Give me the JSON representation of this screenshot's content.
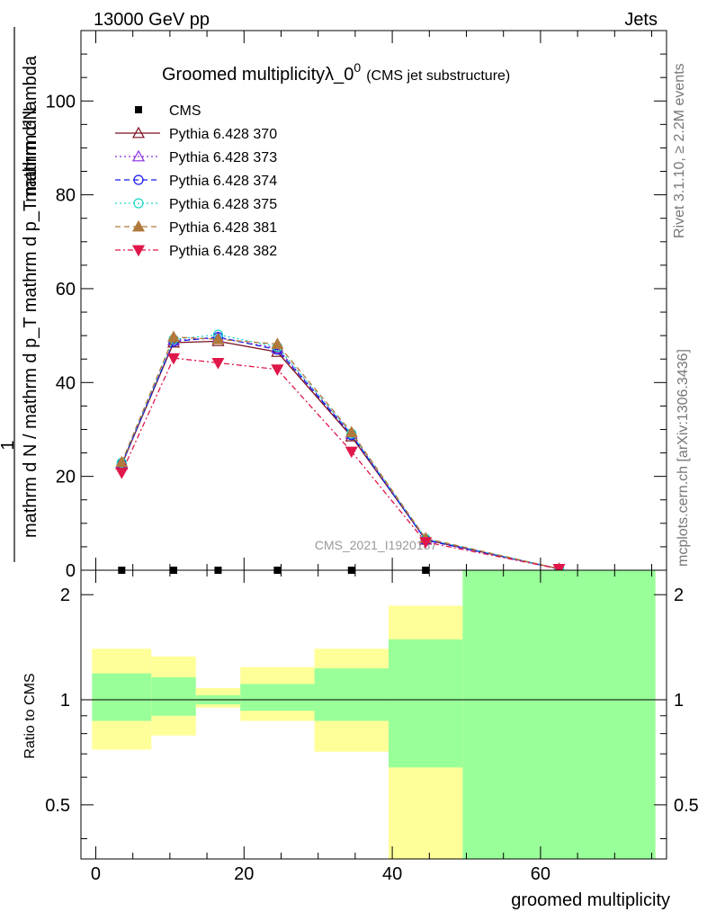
{
  "header": {
    "left": "13000 GeV pp",
    "right": "Jets"
  },
  "side_labels": {
    "rivet": "Rivet 3.1.10, ≥ 2.2M events",
    "mcplots": "mcplots.cern.ch [arXiv:1306.3436]"
  },
  "watermark": "CMS_2021_I1920187",
  "colors": {
    "band_yellow": "#ffff99",
    "band_green": "#99ff99",
    "cms": "#000000",
    "py370": "#7a0f1e",
    "py373": "#8a2be2",
    "py374": "#1a1ae6",
    "py375": "#19d6c8",
    "py381": "#b07a3c",
    "py382": "#e0174a"
  },
  "chart_data": [
    {
      "type": "line",
      "title_main": "Groomed multiplicityλ_0",
      "title_sup": "0",
      "title_sub": "(CMS jet substructure)",
      "ylabel_numer": "mathrm d²N",
      "ylabel_denom": "mathrm d N / mathrm d p_T mathrm d p_T mathrm d lambda",
      "ylabel_one": "1",
      "xlim": [
        -2,
        77
      ],
      "ylim": [
        0,
        115
      ],
      "yticks_major": [
        0,
        20,
        40,
        60,
        80,
        100
      ],
      "x": [
        3.5,
        10.5,
        16.5,
        24.5,
        34.5,
        44.5,
        62.5
      ],
      "series": [
        {
          "name": "CMS",
          "style": "data",
          "values": [
            0,
            0,
            0,
            0,
            0,
            0,
            0
          ]
        },
        {
          "name": "Pythia 6.428 370",
          "style": "solid",
          "marker": "triangle-open",
          "values": [
            22.5,
            48.5,
            48.8,
            46.5,
            28.5,
            6.5,
            0.3
          ]
        },
        {
          "name": "Pythia 6.428 373",
          "style": "dotted",
          "marker": "triangle-open",
          "values": [
            22.8,
            49.0,
            49.5,
            47.3,
            29.0,
            6.6,
            0.3
          ]
        },
        {
          "name": "Pythia 6.428 374",
          "style": "dashed",
          "marker": "circle-open",
          "values": [
            22.6,
            48.7,
            49.7,
            47.0,
            28.8,
            6.4,
            0.3
          ]
        },
        {
          "name": "Pythia 6.428 375",
          "style": "dotted",
          "marker": "circle-open",
          "values": [
            22.9,
            49.2,
            50.2,
            47.6,
            29.1,
            6.7,
            0.3
          ]
        },
        {
          "name": "Pythia 6.428 381",
          "style": "dashed",
          "marker": "triangle-filled",
          "values": [
            23.0,
            49.7,
            49.2,
            48.2,
            29.4,
            6.8,
            0.3
          ]
        },
        {
          "name": "Pythia 6.428 382",
          "style": "dashdot",
          "marker": "triangle-down-filled",
          "values": [
            20.8,
            45.2,
            44.2,
            42.8,
            25.3,
            6.0,
            0.3
          ]
        }
      ]
    },
    {
      "type": "area",
      "ylabel": "Ratio to CMS",
      "xlabel": "groomed multiplicity",
      "xlim": [
        -2,
        77
      ],
      "ylim": [
        0.35,
        2.35
      ],
      "xticks_major": [
        0,
        20,
        40,
        60
      ],
      "yticks_major": [
        0.5,
        1,
        2
      ],
      "reference": 1,
      "bins": [
        {
          "lo": -0.5,
          "hi": 7.5,
          "yellow": [
            0.72,
            1.4
          ],
          "green": [
            0.87,
            1.19
          ]
        },
        {
          "lo": 7.5,
          "hi": 13.5,
          "yellow": [
            0.79,
            1.33
          ],
          "green": [
            0.9,
            1.16
          ]
        },
        {
          "lo": 13.5,
          "hi": 19.5,
          "yellow": [
            0.95,
            1.08
          ],
          "green": [
            0.97,
            1.03
          ]
        },
        {
          "lo": 19.5,
          "hi": 29.5,
          "yellow": [
            0.87,
            1.24
          ],
          "green": [
            0.93,
            1.11
          ]
        },
        {
          "lo": 29.5,
          "hi": 39.5,
          "yellow": [
            0.71,
            1.4
          ],
          "green": [
            0.87,
            1.23
          ]
        },
        {
          "lo": 39.5,
          "hi": 49.5,
          "yellow": [
            0.35,
            1.86
          ],
          "green": [
            0.64,
            1.49
          ]
        },
        {
          "lo": 49.5,
          "hi": 75.5,
          "yellow": [
            0.35,
            2.35
          ],
          "green": [
            0.35,
            2.35
          ]
        }
      ]
    }
  ]
}
